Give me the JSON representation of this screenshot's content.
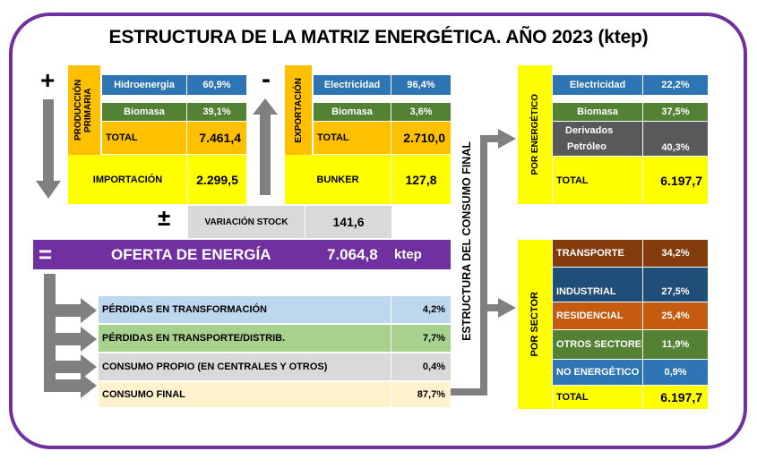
{
  "title": "ESTRUCTURA DE LA MATRIZ ENERGÉTICA. AÑO 2023 (ktep)",
  "colors": {
    "border": "#7030a0",
    "blue": "#2e75b6",
    "green": "#548235",
    "orange": "#ffc000",
    "yellow": "#ffff00",
    "grey_arrow": "#7f7f7f",
    "purple": "#7030a0"
  },
  "symbols": {
    "plus": "+",
    "minus": "-",
    "plusminus": "±",
    "equals": "="
  },
  "produccion": {
    "label": "PRODUCCIÓN PRIMARIA",
    "rows": [
      {
        "name": "Hidroenergia",
        "value": "60,9%"
      },
      {
        "name": "Biomasa",
        "value": "39,1%"
      }
    ],
    "total_label": "TOTAL",
    "total_value": "7.461,4"
  },
  "importacion": {
    "label": "IMPORTACIÓN",
    "value": "2.299,5"
  },
  "exportacion": {
    "label": "EXPORTACIÓN",
    "rows": [
      {
        "name": "Electricidad",
        "value": "96,4%"
      },
      {
        "name": "Biomasa",
        "value": "3,6%"
      }
    ],
    "total_label": "TOTAL",
    "total_value": "2.710,0"
  },
  "bunker": {
    "label": "BUNKER",
    "value": "127,8"
  },
  "variacion": {
    "label": "VARIACIÓN STOCK",
    "value": "141,6"
  },
  "oferta": {
    "label": "OFERTA DE ENERGÍA",
    "value": "7.064,8",
    "unit": "ktep"
  },
  "usos": [
    {
      "name": "PÉRDIDAS EN TRANSFORMACIÓN",
      "value": "4,2%"
    },
    {
      "name": "PÉRDIDAS EN TRANSPORTE/DISTRIB.",
      "value": "7,7%"
    },
    {
      "name": "CONSUMO PROPIO (EN CENTRALES Y OTROS)",
      "value": "0,4%"
    },
    {
      "name": "CONSUMO FINAL",
      "value": "87,7%"
    }
  ],
  "estructura_label": "ESTRUCTURA DEL CONSUMO FINAL",
  "por_energetico": {
    "label": "POR ENERGÉTICO",
    "rows": [
      {
        "name": "Electricidad",
        "value": "22,2%"
      },
      {
        "name": "Biomasa",
        "value": "37,5%"
      },
      {
        "name": "Derivados",
        "name2": "Petróleo",
        "value": "40,3%"
      }
    ],
    "total_label": "TOTAL",
    "total_value": "6.197,7"
  },
  "por_sector": {
    "label": "POR SECTOR",
    "rows": [
      {
        "name": "TRANSPORTE",
        "value": "34,2%"
      },
      {
        "name": "INDUSTRIAL",
        "value": "27,5%"
      },
      {
        "name": "RESIDENCIAL",
        "value": "25,4%"
      },
      {
        "name": "OTROS SECTORES",
        "value": "11,9%"
      },
      {
        "name": "NO ENERGÉTICO",
        "value": "0,9%"
      }
    ],
    "total_label": "TOTAL",
    "total_value": "6.197,7"
  }
}
